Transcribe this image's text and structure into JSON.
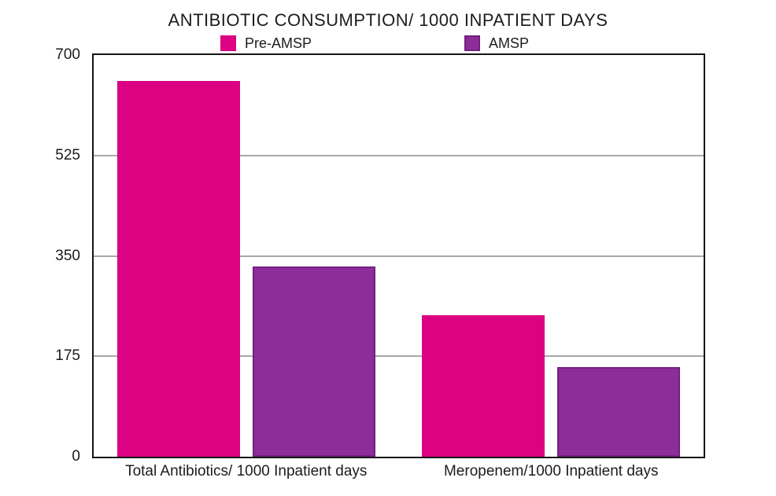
{
  "chart_data": {
    "type": "bar",
    "title": "ANTIBIOTIC CONSUMPTION/ 1000 INPATIENT DAYS",
    "categories": [
      "Total Antibiotics/ 1000 Inpatient days",
      "Meropenem/1000 Inpatient days"
    ],
    "series": [
      {
        "name": "Pre-AMSP",
        "color": "#dc0281",
        "border_color": "#dc0281",
        "values": [
          655,
          247
        ]
      },
      {
        "name": "AMSP",
        "color": "#8c2d99",
        "border_color": "#74207f",
        "values": [
          332,
          156
        ]
      }
    ],
    "xlabel": "",
    "ylabel": "",
    "ylim": [
      0,
      700
    ],
    "y_ticks": [
      0,
      175,
      350,
      525,
      700
    ],
    "grid": "horizontal",
    "gridline_color": "#a8a8a8",
    "frame_color": "#141414",
    "legend_position": "top"
  }
}
